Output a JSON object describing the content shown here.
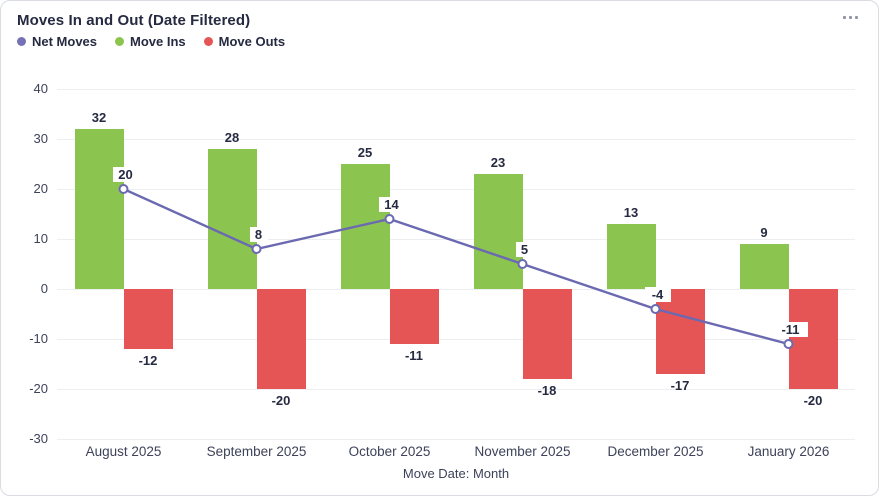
{
  "card": {
    "title": "Moves In and Out (Date Filtered)"
  },
  "legend": [
    {
      "label": "Net Moves",
      "color": "#7471b4"
    },
    {
      "label": "Move Ins",
      "color": "#8cc450"
    },
    {
      "label": "Move Outs",
      "color": "#e55555"
    }
  ],
  "chart_data": {
    "type": "bar",
    "title": "Moves In and Out (Date Filtered)",
    "categories": [
      "August 2025",
      "September 2025",
      "October 2025",
      "November 2025",
      "December 2025",
      "January 2026"
    ],
    "series": [
      {
        "name": "Move Ins",
        "type": "bar",
        "color": "#8cc450",
        "values": [
          32,
          28,
          25,
          23,
          13,
          9
        ]
      },
      {
        "name": "Move Outs",
        "type": "bar",
        "color": "#e55555",
        "values": [
          -12,
          -20,
          -11,
          -18,
          -17,
          -20
        ]
      },
      {
        "name": "Net Moves",
        "type": "line",
        "color": "#6a69b1",
        "marker_fill": "#ffffff",
        "values": [
          20,
          8,
          14,
          5,
          -4,
          -11
        ]
      }
    ],
    "xlabel": "Move Date: Month",
    "ylabel": "",
    "ylim": [
      -30,
      40
    ],
    "ytick_step": 10,
    "grid": true,
    "legend_position": "top-left",
    "data_labels": true
  }
}
